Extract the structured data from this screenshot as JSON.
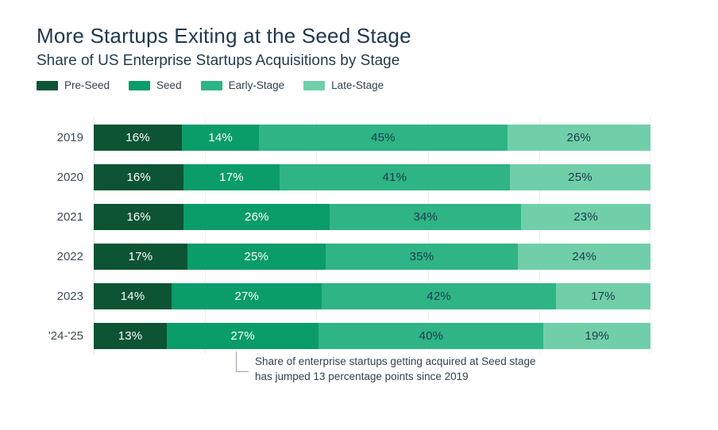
{
  "chart_data": {
    "type": "bar",
    "variant": "horizontal-stacked",
    "title": "More Startups Exiting at the Seed Stage",
    "subtitle": "Share of US Enterprise Startups Acquisitions by Stage",
    "categories": [
      "2019",
      "2020",
      "2021",
      "2022",
      "2023",
      "'24-'25"
    ],
    "series": [
      {
        "name": "Pre-Seed",
        "color": "#0c5433",
        "label_color": "#ffffff",
        "values": [
          16,
          16,
          16,
          17,
          14,
          13
        ]
      },
      {
        "name": "Seed",
        "color": "#0a9c69",
        "label_color": "#ffffff",
        "values": [
          14,
          17,
          26,
          25,
          27,
          27
        ]
      },
      {
        "name": "Early-Stage",
        "color": "#2fb485",
        "label_color": "#1d3c4e",
        "values": [
          45,
          41,
          34,
          35,
          42,
          40
        ]
      },
      {
        "name": "Late-Stage",
        "color": "#70cfa9",
        "label_color": "#1d3c4e",
        "values": [
          26,
          25,
          23,
          24,
          17,
          19
        ]
      }
    ],
    "value_suffix": "%",
    "xlim": [
      0,
      100
    ],
    "gridline_step_pct": 20,
    "grid_on": true,
    "legend_position": "top-left",
    "annotation": {
      "text": "Share of enterprise startups getting acquired at Seed stage has jumped 13 percentage points since 2019",
      "target_category": "'24-'25",
      "target_series": "Seed"
    }
  },
  "palette": {
    "title_text": "#20394e",
    "category_text": "#414b54",
    "gridline": "#eef0f0",
    "axis_line": "#dde2e3",
    "annotation_line": "#9aa3a9",
    "annotation_text": "#33424c",
    "background": "#ffffff"
  }
}
